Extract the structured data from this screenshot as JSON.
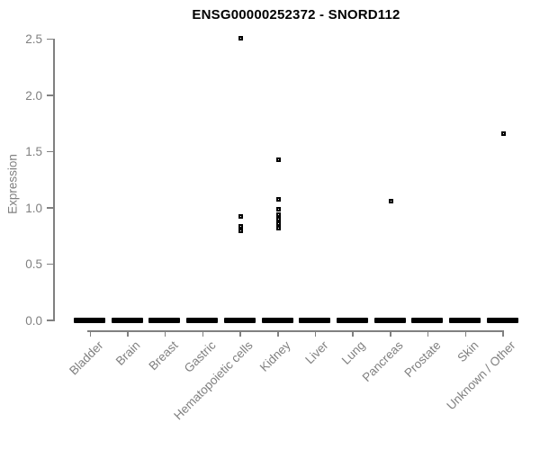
{
  "colors": {
    "point": "#000000",
    "axis": "#808080",
    "tick_text": "#808080",
    "title_text": "#000000",
    "background": "#ffffff"
  },
  "chart_data": {
    "type": "scatter",
    "title": "ENSG00000252372 - SNORD112",
    "xlabel": "",
    "ylabel": "Expression",
    "ylim": [
      0.0,
      2.5
    ],
    "ytick_labels": [
      "0.0",
      "0.5",
      "1.0",
      "1.5",
      "2.0",
      "2.5"
    ],
    "ytick_values": [
      0.0,
      0.5,
      1.0,
      1.5,
      2.0,
      2.5
    ],
    "grid": false,
    "legend": false,
    "marker": "small-open-square",
    "categories": [
      "Bladder",
      "Brain",
      "Breast",
      "Gastric",
      "Hematopoietic cells",
      "Kidney",
      "Liver",
      "Lung",
      "Pancreas",
      "Prostate",
      "Skin",
      "Unknown / Other"
    ],
    "zero_cluster_all_categories": true,
    "zero_cluster_note": "Every category shows a dense horizontal cluster of points at expression 0.0",
    "nonzero_values_by_category": {
      "Bladder": [],
      "Brain": [],
      "Breast": [],
      "Gastric": [],
      "Hematopoietic cells": [
        2.5,
        0.92,
        0.83,
        0.79
      ],
      "Kidney": [
        1.42,
        1.07,
        0.98,
        0.93,
        0.89,
        0.85,
        0.81
      ],
      "Liver": [],
      "Lung": [],
      "Pancreas": [
        1.05
      ],
      "Prostate": [],
      "Skin": [],
      "Unknown / Other": [
        1.65
      ]
    }
  }
}
